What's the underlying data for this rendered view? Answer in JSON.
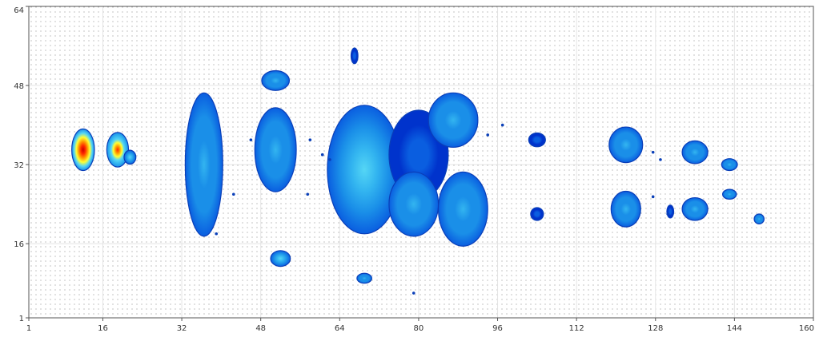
{
  "chart_data": {
    "type": "heatmap",
    "title": "",
    "xlabel": "",
    "ylabel": "",
    "xlim": [
      1,
      160
    ],
    "ylim": [
      1,
      64
    ],
    "grid": true,
    "x_ticks": [
      "1",
      "16",
      "32",
      "48",
      "64",
      "80",
      "96",
      "112",
      "128",
      "144",
      "160"
    ],
    "x_tick_values": [
      1,
      16,
      32,
      48,
      64,
      80,
      96,
      112,
      128,
      144,
      160
    ],
    "y_ticks": [
      "1",
      "16",
      "32",
      "48",
      "64"
    ],
    "y_tick_values": [
      1,
      16,
      32,
      48,
      64
    ],
    "colorscale": [
      "#0033cc",
      "#0a5ee0",
      "#1a8fe8",
      "#33b5f0",
      "#55d6f5",
      "#ffff33",
      "#ff9900",
      "#ff2a00",
      "#cc0000"
    ],
    "blobs": [
      {
        "x": 12,
        "y": 35,
        "rx": 2.3,
        "ry": 4.2,
        "value": 1.0
      },
      {
        "x": 19,
        "y": 35,
        "rx": 2.2,
        "ry": 3.5,
        "value": 0.75
      },
      {
        "x": 21.5,
        "y": 33.5,
        "rx": 1.2,
        "ry": 1.4,
        "value": 0.5
      },
      {
        "x": 36.5,
        "y": 32,
        "rx": 3.8,
        "ry": 14.5,
        "value": 0.4
      },
      {
        "x": 51,
        "y": 35,
        "rx": 4.2,
        "ry": 8.5,
        "value": 0.42
      },
      {
        "x": 51,
        "y": 49,
        "rx": 2.8,
        "ry": 2.0,
        "value": 0.42
      },
      {
        "x": 52,
        "y": 13,
        "rx": 2.0,
        "ry": 1.6,
        "value": 0.45
      },
      {
        "x": 67,
        "y": 54,
        "rx": 0.7,
        "ry": 1.6,
        "value": 0.2
      },
      {
        "x": 69,
        "y": 9,
        "rx": 1.5,
        "ry": 1.0,
        "value": 0.35
      },
      {
        "x": 69,
        "y": 31,
        "rx": 7.5,
        "ry": 13.0,
        "value": 0.48
      },
      {
        "x": 80,
        "y": 34,
        "rx": 6.0,
        "ry": 9.0,
        "value": 0.22
      },
      {
        "x": 79,
        "y": 24,
        "rx": 5.0,
        "ry": 6.5,
        "value": 0.35
      },
      {
        "x": 87,
        "y": 41,
        "rx": 5.0,
        "ry": 5.5,
        "value": 0.4
      },
      {
        "x": 89,
        "y": 23,
        "rx": 5.0,
        "ry": 7.5,
        "value": 0.4
      },
      {
        "x": 104,
        "y": 37,
        "rx": 1.7,
        "ry": 1.4,
        "value": 0.25
      },
      {
        "x": 104,
        "y": 22,
        "rx": 1.3,
        "ry": 1.3,
        "value": 0.25
      },
      {
        "x": 122,
        "y": 36,
        "rx": 3.4,
        "ry": 3.6,
        "value": 0.4
      },
      {
        "x": 122,
        "y": 23,
        "rx": 3.0,
        "ry": 3.6,
        "value": 0.4
      },
      {
        "x": 131,
        "y": 22.5,
        "rx": 0.7,
        "ry": 1.3,
        "value": 0.25
      },
      {
        "x": 136,
        "y": 34.5,
        "rx": 2.6,
        "ry": 2.3,
        "value": 0.35
      },
      {
        "x": 136,
        "y": 23,
        "rx": 2.6,
        "ry": 2.3,
        "value": 0.35
      },
      {
        "x": 143,
        "y": 32,
        "rx": 1.6,
        "ry": 1.2,
        "value": 0.4
      },
      {
        "x": 143,
        "y": 26,
        "rx": 1.4,
        "ry": 1.0,
        "value": 0.3
      },
      {
        "x": 149,
        "y": 21,
        "rx": 1.0,
        "ry": 1.0,
        "value": 0.3
      }
    ],
    "specks": [
      {
        "x": 46,
        "y": 37
      },
      {
        "x": 42.5,
        "y": 26
      },
      {
        "x": 39,
        "y": 18
      },
      {
        "x": 57.5,
        "y": 26
      },
      {
        "x": 58,
        "y": 37
      },
      {
        "x": 60.5,
        "y": 34
      },
      {
        "x": 62,
        "y": 33
      },
      {
        "x": 94,
        "y": 38
      },
      {
        "x": 97,
        "y": 40
      },
      {
        "x": 79,
        "y": 6
      },
      {
        "x": 127.5,
        "y": 34.5
      },
      {
        "x": 129,
        "y": 33
      },
      {
        "x": 127.5,
        "y": 25.5
      },
      {
        "x": 130.5,
        "y": 22
      }
    ]
  }
}
